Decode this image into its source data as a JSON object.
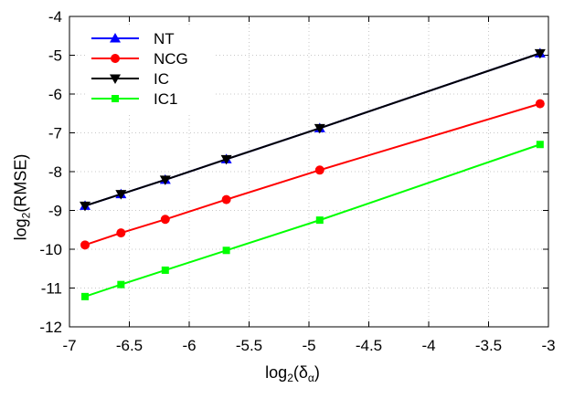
{
  "chart_data": {
    "type": "line",
    "xlabel": {
      "base": "log",
      "sub": "2",
      "arg": "(δ",
      "argsub": "α",
      "close": ")"
    },
    "ylabel": {
      "base": "log",
      "sub": "2",
      "arg": "(RMSE)"
    },
    "xlim": [
      -7,
      -3
    ],
    "ylim": [
      -12,
      -4
    ],
    "xticks": [
      -7,
      -6.5,
      -6,
      -5.5,
      -5,
      -4.5,
      -4,
      -3.5,
      -3
    ],
    "yticks": [
      -12,
      -11,
      -10,
      -9,
      -8,
      -7,
      -6,
      -5,
      -4
    ],
    "xtick_labels": [
      "-7",
      "-6.5",
      "-6",
      "-5.5",
      "-5",
      "-4.5",
      "-4",
      "-3.5",
      "-3"
    ],
    "ytick_labels": [
      "-12",
      "-11",
      "-10",
      "-9",
      "-8",
      "-7",
      "-6",
      "-5",
      "-4"
    ],
    "legend_position": "top-left",
    "x": [
      -6.87,
      -6.57,
      -6.2,
      -5.69,
      -4.91,
      -3.07
    ],
    "series": [
      {
        "name": "NT",
        "color": "#0000ff",
        "marker": "triangle-up",
        "values": [
          -8.88,
          -8.58,
          -8.21,
          -7.68,
          -6.88,
          -4.95
        ]
      },
      {
        "name": "NCG",
        "color": "#ff0000",
        "marker": "circle",
        "values": [
          -9.89,
          -9.58,
          -9.23,
          -8.72,
          -7.96,
          -6.25
        ]
      },
      {
        "name": "IC",
        "color": "#000000",
        "marker": "triangle-down",
        "values": [
          -8.88,
          -8.58,
          -8.21,
          -7.68,
          -6.88,
          -4.95
        ]
      },
      {
        "name": "IC1",
        "color": "#00ff00",
        "marker": "square",
        "values": [
          -11.22,
          -10.91,
          -10.54,
          -10.03,
          -9.25,
          -7.3
        ]
      }
    ]
  }
}
